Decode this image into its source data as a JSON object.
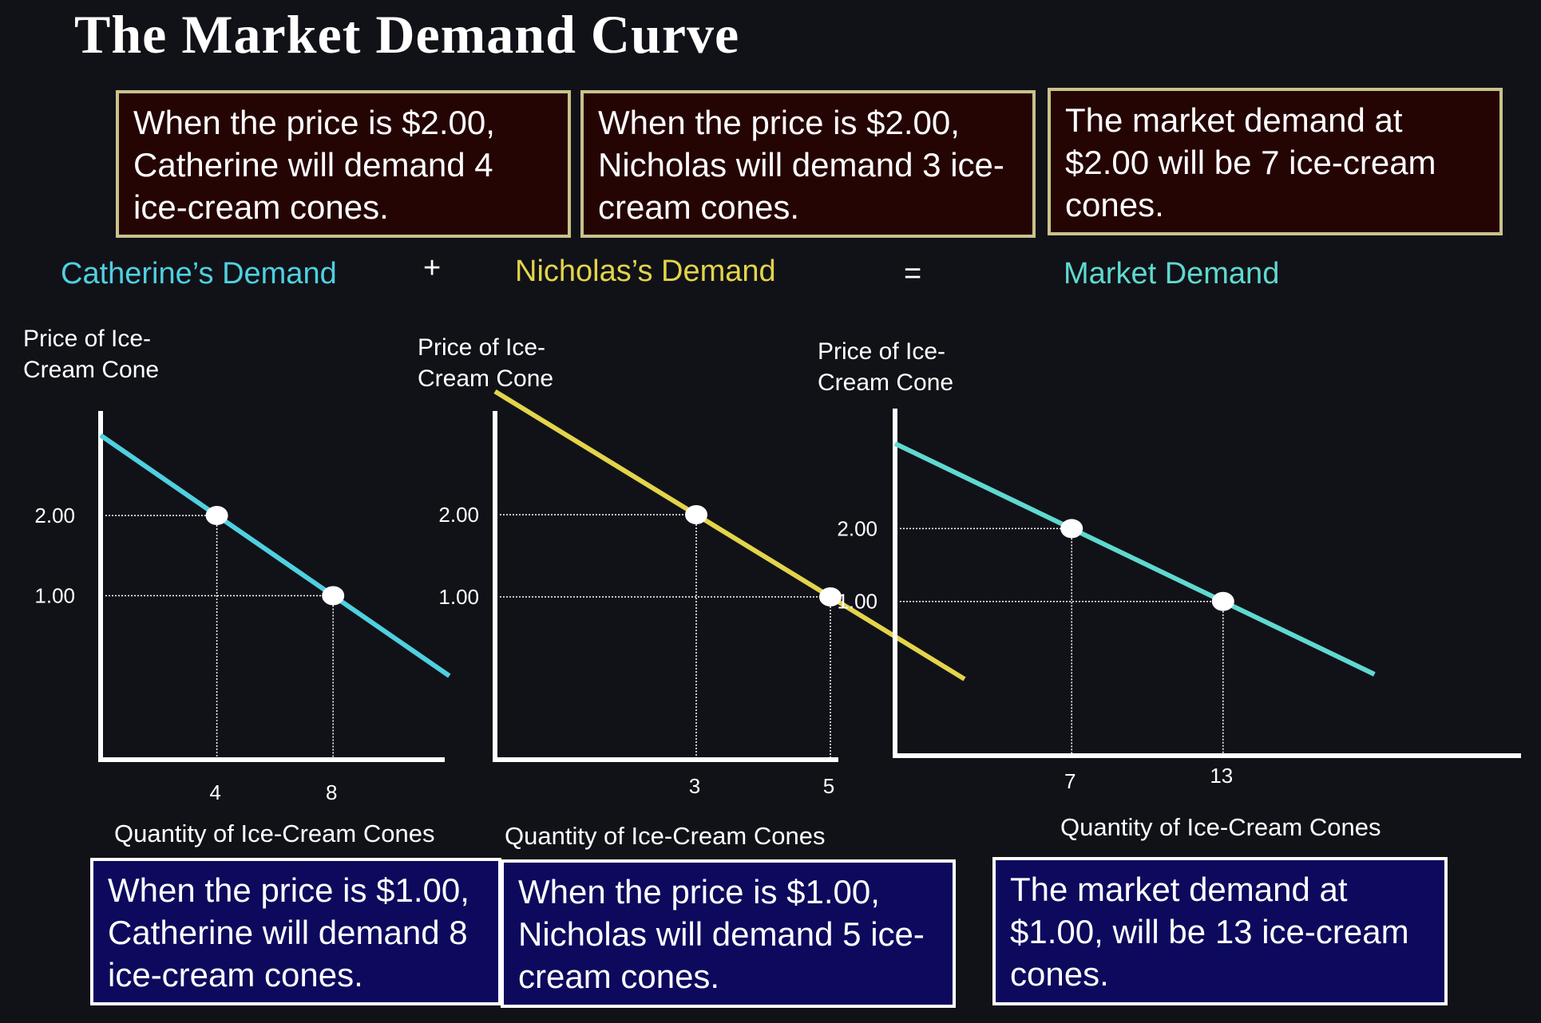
{
  "title": "The Market Demand Curve",
  "colors": {
    "catherine": "#4fd0e0",
    "nicholas": "#e3d44a",
    "market": "#5fd9d0",
    "top_box_bg": "#250404",
    "top_box_border": "#c9c38a",
    "bottom_box_bg": "#0d0a5e",
    "bottom_box_border": "#ffffff"
  },
  "top_boxes": [
    "When the price is $2.00, Catherine will demand 4 ice-cream cones.",
    "When the price is $2.00, Nicholas will demand 3 ice-cream cones.",
    "The market demand at $2.00 will be 7 ice-cream cones."
  ],
  "bottom_boxes": [
    "When the price is $1.00, Catherine will demand 8 ice-cream cones.",
    "When the price is $1.00, Nicholas will demand 5 ice-cream cones.",
    "The market demand at $1.00,  will be 13 ice-cream cones."
  ],
  "headings": {
    "catherine": "Catherine’s Demand",
    "plus": "+",
    "nicholas": "Nicholas’s Demand",
    "equals": "=",
    "market": "Market Demand"
  },
  "axis": {
    "price_line1": "Price of Ice-",
    "price_line2": "Cream Cone",
    "quantity": "Quantity of Ice-Cream Cones"
  },
  "chart_data": [
    {
      "type": "line",
      "name": "Catherine's Demand",
      "color_key": "catherine",
      "xlabel": "Quantity of Ice-Cream Cones",
      "ylabel": "Price of Ice-Cream Cone",
      "points": [
        {
          "x": 4,
          "y": 2.0
        },
        {
          "x": 8,
          "y": 1.0
        }
      ],
      "x_ticks": [
        "4",
        "8"
      ],
      "y_ticks": [
        "2.00",
        "1.00"
      ]
    },
    {
      "type": "line",
      "name": "Nicholas's Demand",
      "color_key": "nicholas",
      "xlabel": "Quantity of Ice-Cream Cones",
      "ylabel": "Price of Ice-Cream Cone",
      "points": [
        {
          "x": 3,
          "y": 2.0
        },
        {
          "x": 5,
          "y": 1.0
        }
      ],
      "x_ticks": [
        "3",
        "5"
      ],
      "y_ticks": [
        "2.00",
        "1.00"
      ]
    },
    {
      "type": "line",
      "name": "Market Demand",
      "color_key": "market",
      "xlabel": "Quantity of Ice-Cream Cones",
      "ylabel": "Price of Ice-Cream Cone",
      "points": [
        {
          "x": 7,
          "y": 2.0
        },
        {
          "x": 13,
          "y": 1.0
        }
      ],
      "x_ticks": [
        "7",
        "13"
      ],
      "y_ticks": [
        "2.00",
        "1.00"
      ]
    }
  ]
}
